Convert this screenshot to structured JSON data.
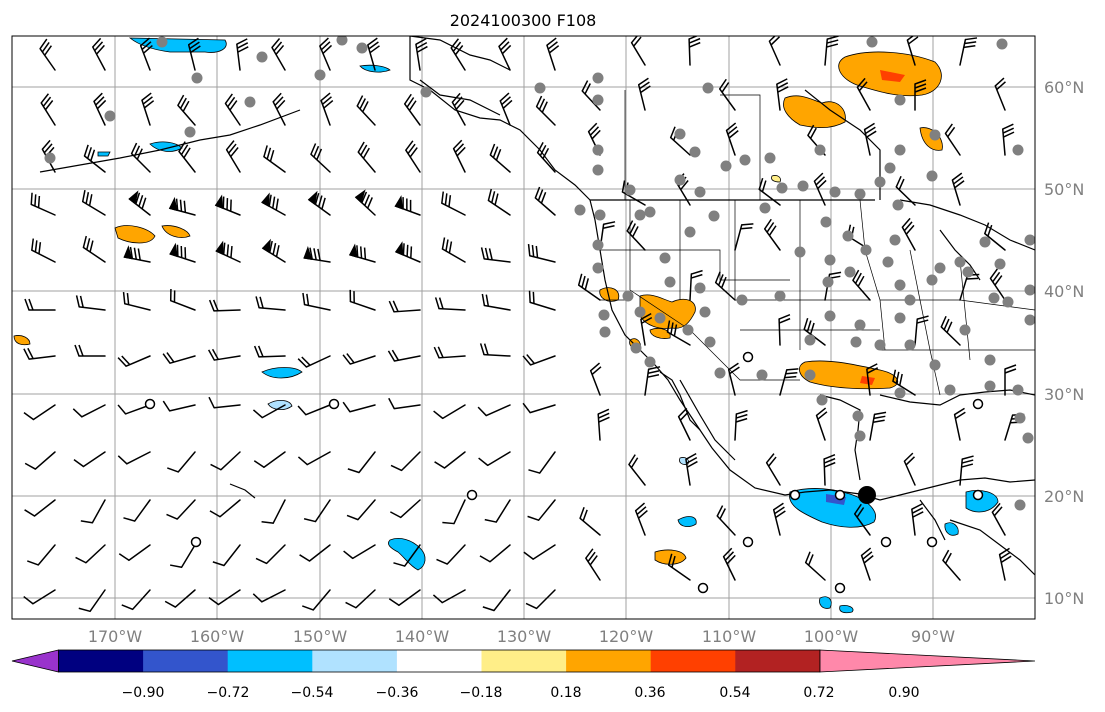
{
  "title": "2024100300 F108",
  "lon_labels": [
    "170°W",
    "160°W",
    "150°W",
    "140°W",
    "130°W",
    "120°W",
    "110°W",
    "100°W",
    "90°W"
  ],
  "lat_labels": [
    "60°N",
    "50°N",
    "40°N",
    "30°N",
    "20°N",
    "10°N"
  ],
  "colorbar": {
    "labels": [
      "−0.90",
      "−0.72",
      "−0.54",
      "−0.36",
      "−0.18",
      "0.18",
      "0.36",
      "0.54",
      "0.72",
      "0.90"
    ],
    "colors": [
      "#9933cc",
      "#000080",
      "#3355cc",
      "#00bfff",
      "#b0e2ff",
      "#ffffff",
      "#ffee88",
      "#ffa500",
      "#ff4000",
      "#b22222",
      "#ff88aa"
    ]
  },
  "colors": {
    "grid": "#a0a0a0",
    "coast": "#000000",
    "label": "#808080",
    "station_gray": "#808080"
  }
}
